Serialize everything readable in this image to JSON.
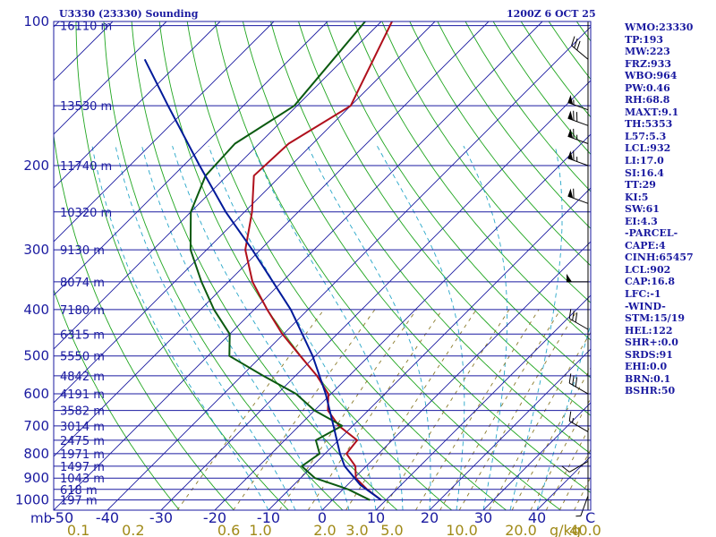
{
  "header": {
    "title": "U3330 (23330) Sounding",
    "datetime": "1200Z  6 OCT 25"
  },
  "indices": [
    "WMO:23330",
    "TP:193",
    "MW:223",
    "FRZ:933",
    "WBO:964",
    "PW:0.46",
    "RH:68.8",
    "MAXT:9.1",
    "TH:5353",
    "L57:5.3",
    "LCL:932",
    "LI:17.0",
    "SI:16.4",
    "TT:29",
    "KI:5",
    "SW:61",
    "EI:4.3",
    "-PARCEL-",
    "CAPE:4",
    "CINH:65457",
    "LCL:902",
    "CAP:16.8",
    "LFC:-1",
    "-WIND-",
    "STM:15/19",
    "HEL:122",
    "SHR+:0.0",
    "SRDS:91",
    "EHI:0.0",
    "BRN:0.1",
    "BSHR:50"
  ],
  "colors": {
    "frame": "#1a1aa0",
    "isobar": "#1a1aa0",
    "isotherm": "#1a1aa0",
    "dry_adiabat": "#1fa51f",
    "moist_adiabat": "#26a6c8",
    "mixing_ratio": "#8a7a2a",
    "temperature": "#b0101c",
    "dewpoint": "#0b5a10",
    "parcel": "#001a9a",
    "wind_barb": "#000000"
  },
  "chart_data": {
    "type": "skew-t log-p",
    "title": "U3330 (23330) Sounding",
    "p_range_hPa": [
      1050,
      100
    ],
    "t_range_C_at_bottom": [
      -50,
      50
    ],
    "pressure_unit_label": "mb",
    "mixing_ratio_unit_label": "g/kg",
    "pressure_ticks": [
      {
        "p": 100,
        "label": "100"
      },
      {
        "p": 200,
        "label": "200"
      },
      {
        "p": 300,
        "label": "300"
      },
      {
        "p": 400,
        "label": "400"
      },
      {
        "p": 500,
        "label": "500"
      },
      {
        "p": 600,
        "label": "600"
      },
      {
        "p": 700,
        "label": "700"
      },
      {
        "p": 800,
        "label": "800"
      },
      {
        "p": 900,
        "label": "900"
      },
      {
        "p": 1000,
        "label": "1000"
      }
    ],
    "temperature_ticks": [
      {
        "t": -40,
        "label": "-40"
      },
      {
        "t": -30,
        "label": "-30"
      },
      {
        "t": -20,
        "label": "-20"
      },
      {
        "t": -10,
        "label": "-10"
      },
      {
        "t": 0,
        "label": "0"
      },
      {
        "t": 10,
        "label": "10"
      },
      {
        "t": 20,
        "label": "20"
      },
      {
        "t": 30,
        "label": "30"
      },
      {
        "t": 40,
        "label": "40"
      }
    ],
    "mixing_ratio_ticks": [
      {
        "t": -45.4,
        "label": "0.1"
      },
      {
        "t": -35.2,
        "label": "0.2"
      },
      {
        "t": -17.4,
        "label": "0.6"
      },
      {
        "t": -11.5,
        "label": "1.0"
      },
      {
        "t": 0.5,
        "label": "2.0"
      },
      {
        "t": 6.5,
        "label": "3.0"
      },
      {
        "t": 13.0,
        "label": "5.0"
      },
      {
        "t": 26.0,
        "label": "10.0"
      },
      {
        "t": 37.0,
        "label": "20.0"
      },
      {
        "t": 49.0,
        "label": "40.0"
      }
    ],
    "height_levels": [
      {
        "p": 102,
        "label": "16110 m"
      },
      {
        "p": 150,
        "label": "13530 m"
      },
      {
        "p": 200,
        "label": "11740 m"
      },
      {
        "p": 250,
        "label": "10320 m"
      },
      {
        "p": 300,
        "label": "9130 m"
      },
      {
        "p": 350,
        "label": "8074 m"
      },
      {
        "p": 400,
        "label": "7180 m"
      },
      {
        "p": 450,
        "label": "6315 m"
      },
      {
        "p": 500,
        "label": "5550 m"
      },
      {
        "p": 550,
        "label": "4842 m"
      },
      {
        "p": 600,
        "label": "4191 m"
      },
      {
        "p": 650,
        "label": "3582 m"
      },
      {
        "p": 700,
        "label": "3014 m"
      },
      {
        "p": 750,
        "label": "2475 m"
      },
      {
        "p": 800,
        "label": "1971 m"
      },
      {
        "p": 850,
        "label": "1497 m"
      },
      {
        "p": 900,
        "label": "1043 m"
      },
      {
        "p": 950,
        "label": "618 m"
      },
      {
        "p": 1000,
        "label": "197 m"
      }
    ],
    "series": [
      {
        "name": "Temperature",
        "points": [
          {
            "p": 1000,
            "t": 9.1
          },
          {
            "p": 950,
            "t": 4.5
          },
          {
            "p": 900,
            "t": 0.3
          },
          {
            "p": 850,
            "t": -2.0
          },
          {
            "p": 800,
            "t": -6.0
          },
          {
            "p": 750,
            "t": -6.5
          },
          {
            "p": 700,
            "t": -12.6
          },
          {
            "p": 650,
            "t": -17.5
          },
          {
            "p": 600,
            "t": -20.5
          },
          {
            "p": 550,
            "t": -26.0
          },
          {
            "p": 500,
            "t": -32.8
          },
          {
            "p": 450,
            "t": -40.2
          },
          {
            "p": 400,
            "t": -47.6
          },
          {
            "p": 350,
            "t": -55.5
          },
          {
            "p": 300,
            "t": -62.8
          },
          {
            "p": 250,
            "t": -68.6
          },
          {
            "p": 210,
            "t": -75.0
          },
          {
            "p": 180,
            "t": -74.5
          },
          {
            "p": 150,
            "t": -70.0
          },
          {
            "p": 100,
            "t": -78.0
          }
        ]
      },
      {
        "name": "Dewpoint",
        "points": [
          {
            "p": 1000,
            "t": 7.0
          },
          {
            "p": 950,
            "t": 1.0
          },
          {
            "p": 900,
            "t": -7.3
          },
          {
            "p": 850,
            "t": -12.0
          },
          {
            "p": 800,
            "t": -11.0
          },
          {
            "p": 750,
            "t": -14.2
          },
          {
            "p": 700,
            "t": -12.0
          },
          {
            "p": 650,
            "t": -20.0
          },
          {
            "p": 600,
            "t": -26.5
          },
          {
            "p": 550,
            "t": -36.0
          },
          {
            "p": 500,
            "t": -46.0
          },
          {
            "p": 450,
            "t": -50.0
          },
          {
            "p": 400,
            "t": -57.5
          },
          {
            "p": 350,
            "t": -65.0
          },
          {
            "p": 300,
            "t": -73.0
          },
          {
            "p": 250,
            "t": -80.0
          },
          {
            "p": 210,
            "t": -84.0
          },
          {
            "p": 180,
            "t": -84.5
          },
          {
            "p": 150,
            "t": -80.5
          },
          {
            "p": 100,
            "t": -83.0
          }
        ]
      },
      {
        "name": "Parcel",
        "points": [
          {
            "p": 1000,
            "t": 9.1
          },
          {
            "p": 930,
            "t": 2.4
          },
          {
            "p": 850,
            "t": -4.0
          },
          {
            "p": 800,
            "t": -7.2
          },
          {
            "p": 700,
            "t": -13.6
          },
          {
            "p": 600,
            "t": -21.0
          },
          {
            "p": 500,
            "t": -30.5
          },
          {
            "p": 400,
            "t": -43.2
          },
          {
            "p": 300,
            "t": -61.5
          },
          {
            "p": 250,
            "t": -73.5
          },
          {
            "p": 200,
            "t": -87.0
          },
          {
            "p": 150,
            "t": -104.0
          },
          {
            "p": 120,
            "t": -117.0
          }
        ]
      }
    ],
    "wind_barbs": [
      {
        "p": 120,
        "dir": 310,
        "kt": 30
      },
      {
        "p": 153,
        "dir": 290,
        "kt": 55
      },
      {
        "p": 165,
        "dir": 290,
        "kt": 70
      },
      {
        "p": 180,
        "dir": 290,
        "kt": 65
      },
      {
        "p": 200,
        "dir": 290,
        "kt": 65
      },
      {
        "p": 240,
        "dir": 290,
        "kt": 60
      },
      {
        "p": 350,
        "dir": 270,
        "kt": 50
      },
      {
        "p": 440,
        "dir": 300,
        "kt": 30
      },
      {
        "p": 600,
        "dir": 300,
        "kt": 30
      },
      {
        "p": 720,
        "dir": 300,
        "kt": 15
      },
      {
        "p": 830,
        "dir": 240,
        "kt": 10
      },
      {
        "p": 980,
        "dir": 200,
        "kt": 5
      }
    ]
  }
}
